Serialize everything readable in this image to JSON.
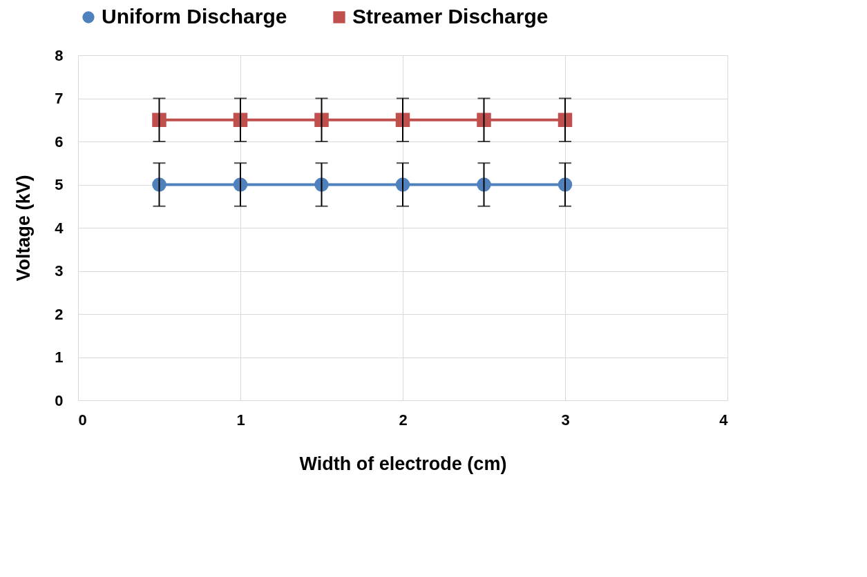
{
  "chart_data": {
    "type": "line",
    "xlabel": "Width of electrode (cm)",
    "ylabel": "Voltage  (kV)",
    "x": [
      0.5,
      1,
      1.5,
      2,
      2.5,
      3
    ],
    "series": [
      {
        "name": "Uniform Discharge",
        "color": "#4f81bd",
        "marker": "circle",
        "values": [
          5,
          5,
          5,
          5,
          5,
          5
        ],
        "errors": [
          0.5,
          0.5,
          0.5,
          0.5,
          0.5,
          0.5
        ]
      },
      {
        "name": "Streamer Discharge",
        "color": "#c0504d",
        "marker": "square",
        "values": [
          6.5,
          6.5,
          6.5,
          6.5,
          6.5,
          6.5
        ],
        "errors": [
          0.5,
          0.5,
          0.5,
          0.5,
          0.5,
          0.5
        ]
      }
    ],
    "xlim": [
      0,
      4
    ],
    "xticks": [
      0,
      1,
      2,
      3,
      4
    ],
    "ylim": [
      0,
      8
    ],
    "yticks": [
      0,
      1,
      2,
      3,
      4,
      5,
      6,
      7,
      8
    ],
    "grid": true,
    "legend": "top",
    "line_style": "solid"
  }
}
